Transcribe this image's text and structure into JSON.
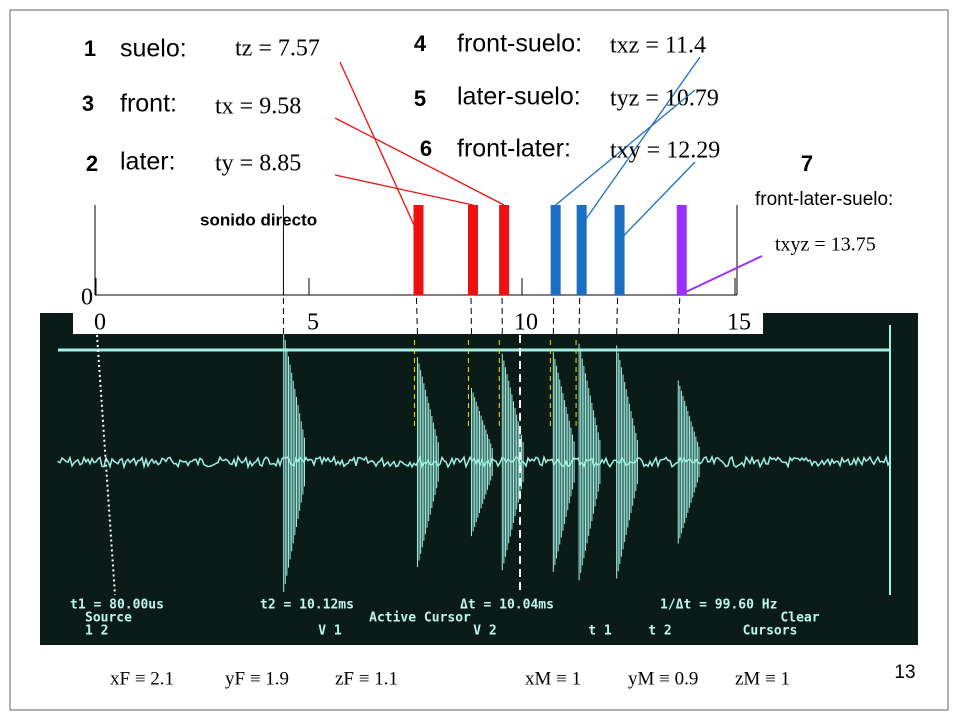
{
  "reflections": [
    {
      "number": 1,
      "name": "suelo:",
      "time": {
        "value": 7.57,
        "label": "tz = 7.57"
      },
      "color": "#ee1111"
    },
    {
      "number": 3,
      "name": "front:",
      "time": {
        "value": 9.58,
        "label": "tx = 9.58"
      },
      "color": "#ee1111"
    },
    {
      "number": 2,
      "name": "later:",
      "time": {
        "value": 8.85,
        "label": "ty = 8.85"
      },
      "color": "#ee1111"
    },
    {
      "number": 4,
      "name": "front-suelo:",
      "time": {
        "value": 11.4,
        "label": "txz = 11.4"
      },
      "color": "#1a6fc4"
    },
    {
      "number": 5,
      "name": "later-suelo:",
      "time": {
        "value": 10.79,
        "label": "tyz = 10.79"
      },
      "color": "#1a6fc4"
    },
    {
      "number": 6,
      "name": "front-later:",
      "time": {
        "value": 12.29,
        "label": "txy = 12.29"
      },
      "color": "#1a6fc4"
    },
    {
      "number": 7,
      "name": "front-later-suelo:",
      "time": {
        "value": 13.75,
        "label": "txyz = 13.75"
      },
      "color": "#9b30ff"
    }
  ],
  "direct": {
    "label": "sonido directo",
    "time": 4.4
  },
  "axis": {
    "lim": [
      0,
      15
    ],
    "ticks": [
      0,
      5,
      10,
      15
    ]
  },
  "scope": {
    "readout": [
      "t1 = 80.00us",
      "t2 = 10.12ms",
      "Δt = 10.04ms",
      "1/Δt = 99.60 Hz"
    ],
    "menu": [
      "Source",
      "1  2",
      "Active Cursor",
      "V 1",
      "V 2",
      "t 1",
      "t 2",
      "Clear",
      "Cursors"
    ]
  },
  "factors": [
    "xF ≡ 2.1",
    "yF ≡ 1.9",
    "zF ≡ 1.1",
    "xM ≡ 1",
    "yM ≡ 0.9",
    "zM ≡ 1"
  ],
  "page_number": "13"
}
